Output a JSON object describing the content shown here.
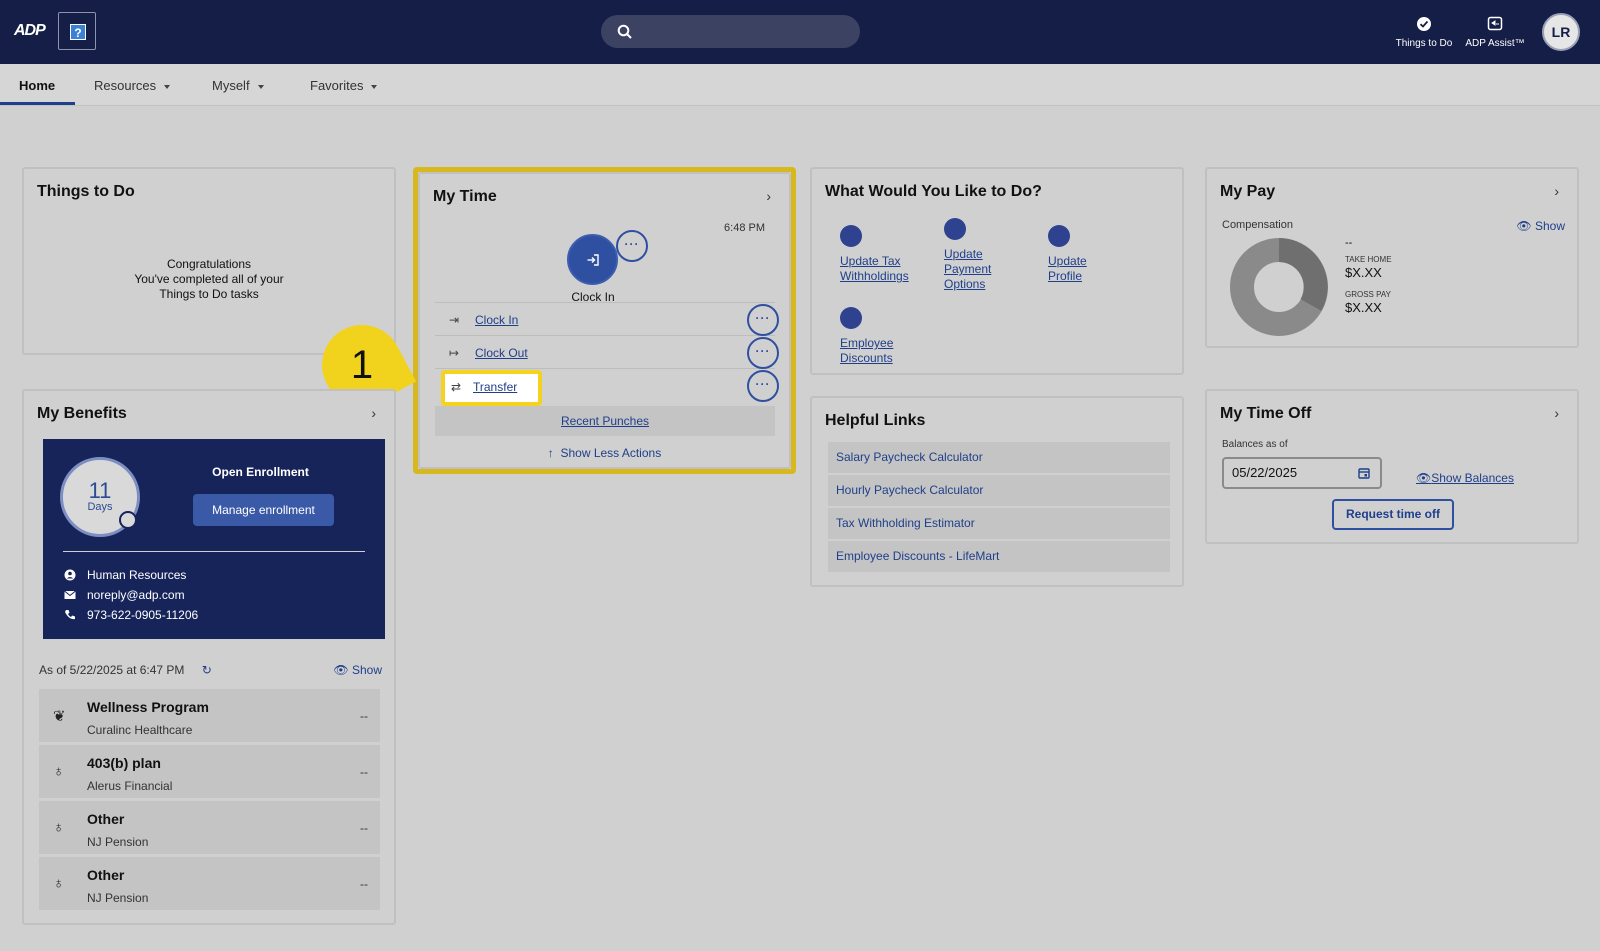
{
  "header": {
    "logo_text": "ADP",
    "help_glyph": "?",
    "actions": [
      {
        "label": "Things to Do",
        "icon": "check-circle-icon"
      },
      {
        "label": "ADP Assist™",
        "icon": "assist-icon"
      }
    ],
    "avatar_initials": "LR"
  },
  "nav": {
    "items": [
      {
        "label": "Home",
        "active": true
      },
      {
        "label": "Resources",
        "has_menu": true
      },
      {
        "label": "Myself",
        "has_menu": true
      },
      {
        "label": "Favorites",
        "has_menu": true
      }
    ]
  },
  "things_to_do": {
    "title": "Things to Do",
    "message_lines": [
      "Congratulations",
      "You've completed all of your",
      "Things to Do tasks"
    ]
  },
  "my_time": {
    "title": "My Time",
    "time": "6:48 PM",
    "primary_label": "Clock In",
    "actions": [
      {
        "label": "Clock In",
        "glyph": "⇥"
      },
      {
        "label": "Clock Out",
        "glyph": "↦"
      },
      {
        "label": "Transfer",
        "glyph": "⇄"
      }
    ],
    "recent_punches": "Recent Punches",
    "show_less": "Show Less Actions",
    "more_glyph": "···"
  },
  "step_marker": "1",
  "what_would_you_like": {
    "title": "What Would You Like to Do?",
    "items": [
      "Update Tax Withholdings",
      "Update Payment Options",
      "Update Profile",
      "Employee Discounts"
    ]
  },
  "helpful_links": {
    "title": "Helpful Links",
    "links": [
      "Salary Paycheck Calculator",
      "Hourly Paycheck Calculator",
      "Tax Withholding Estimator",
      "Employee Discounts - LifeMart"
    ]
  },
  "my_pay": {
    "title": "My Pay",
    "subtitle": "Compensation",
    "show": "Show",
    "dash": "--",
    "take_home_label": "TAKE HOME",
    "take_home_value": "$X.XX",
    "gross_pay_label": "GROSS PAY",
    "gross_pay_value": "$X.XX"
  },
  "my_time_off": {
    "title": "My Time Off",
    "balances_label": "Balances as of",
    "date_value": "05/22/2025",
    "show_balances": "Show Balances",
    "request_button": "Request time off"
  },
  "my_benefits": {
    "title": "My Benefits",
    "days_number": "11",
    "days_label": "Days",
    "enrollment_title": "Open Enrollment",
    "manage_button": "Manage enrollment",
    "contacts": [
      {
        "icon": "person-icon",
        "text": "Human Resources"
      },
      {
        "icon": "mail-icon",
        "text": "noreply@adp.com"
      },
      {
        "icon": "phone-icon",
        "text": "973-622-0905-11206"
      }
    ],
    "as_of": "As of 5/22/2025 at 6:47 PM",
    "show": "Show",
    "plans": [
      {
        "name": "Wellness Program",
        "provider": "Curalinc Healthcare",
        "value": "--",
        "icon": "lotus-icon"
      },
      {
        "name": "403(b) plan",
        "provider": "Alerus Financial",
        "value": "--",
        "icon": "lightbulb-icon"
      },
      {
        "name": "Other",
        "provider": "NJ Pension",
        "value": "--",
        "icon": "lightbulb-icon"
      },
      {
        "name": "Other",
        "provider": "NJ Pension",
        "value": "--",
        "icon": "lightbulb-icon"
      }
    ]
  },
  "colors": {
    "header_bg": "#151e46",
    "accent": "#2f50a0",
    "highlight": "#f1d31d"
  }
}
